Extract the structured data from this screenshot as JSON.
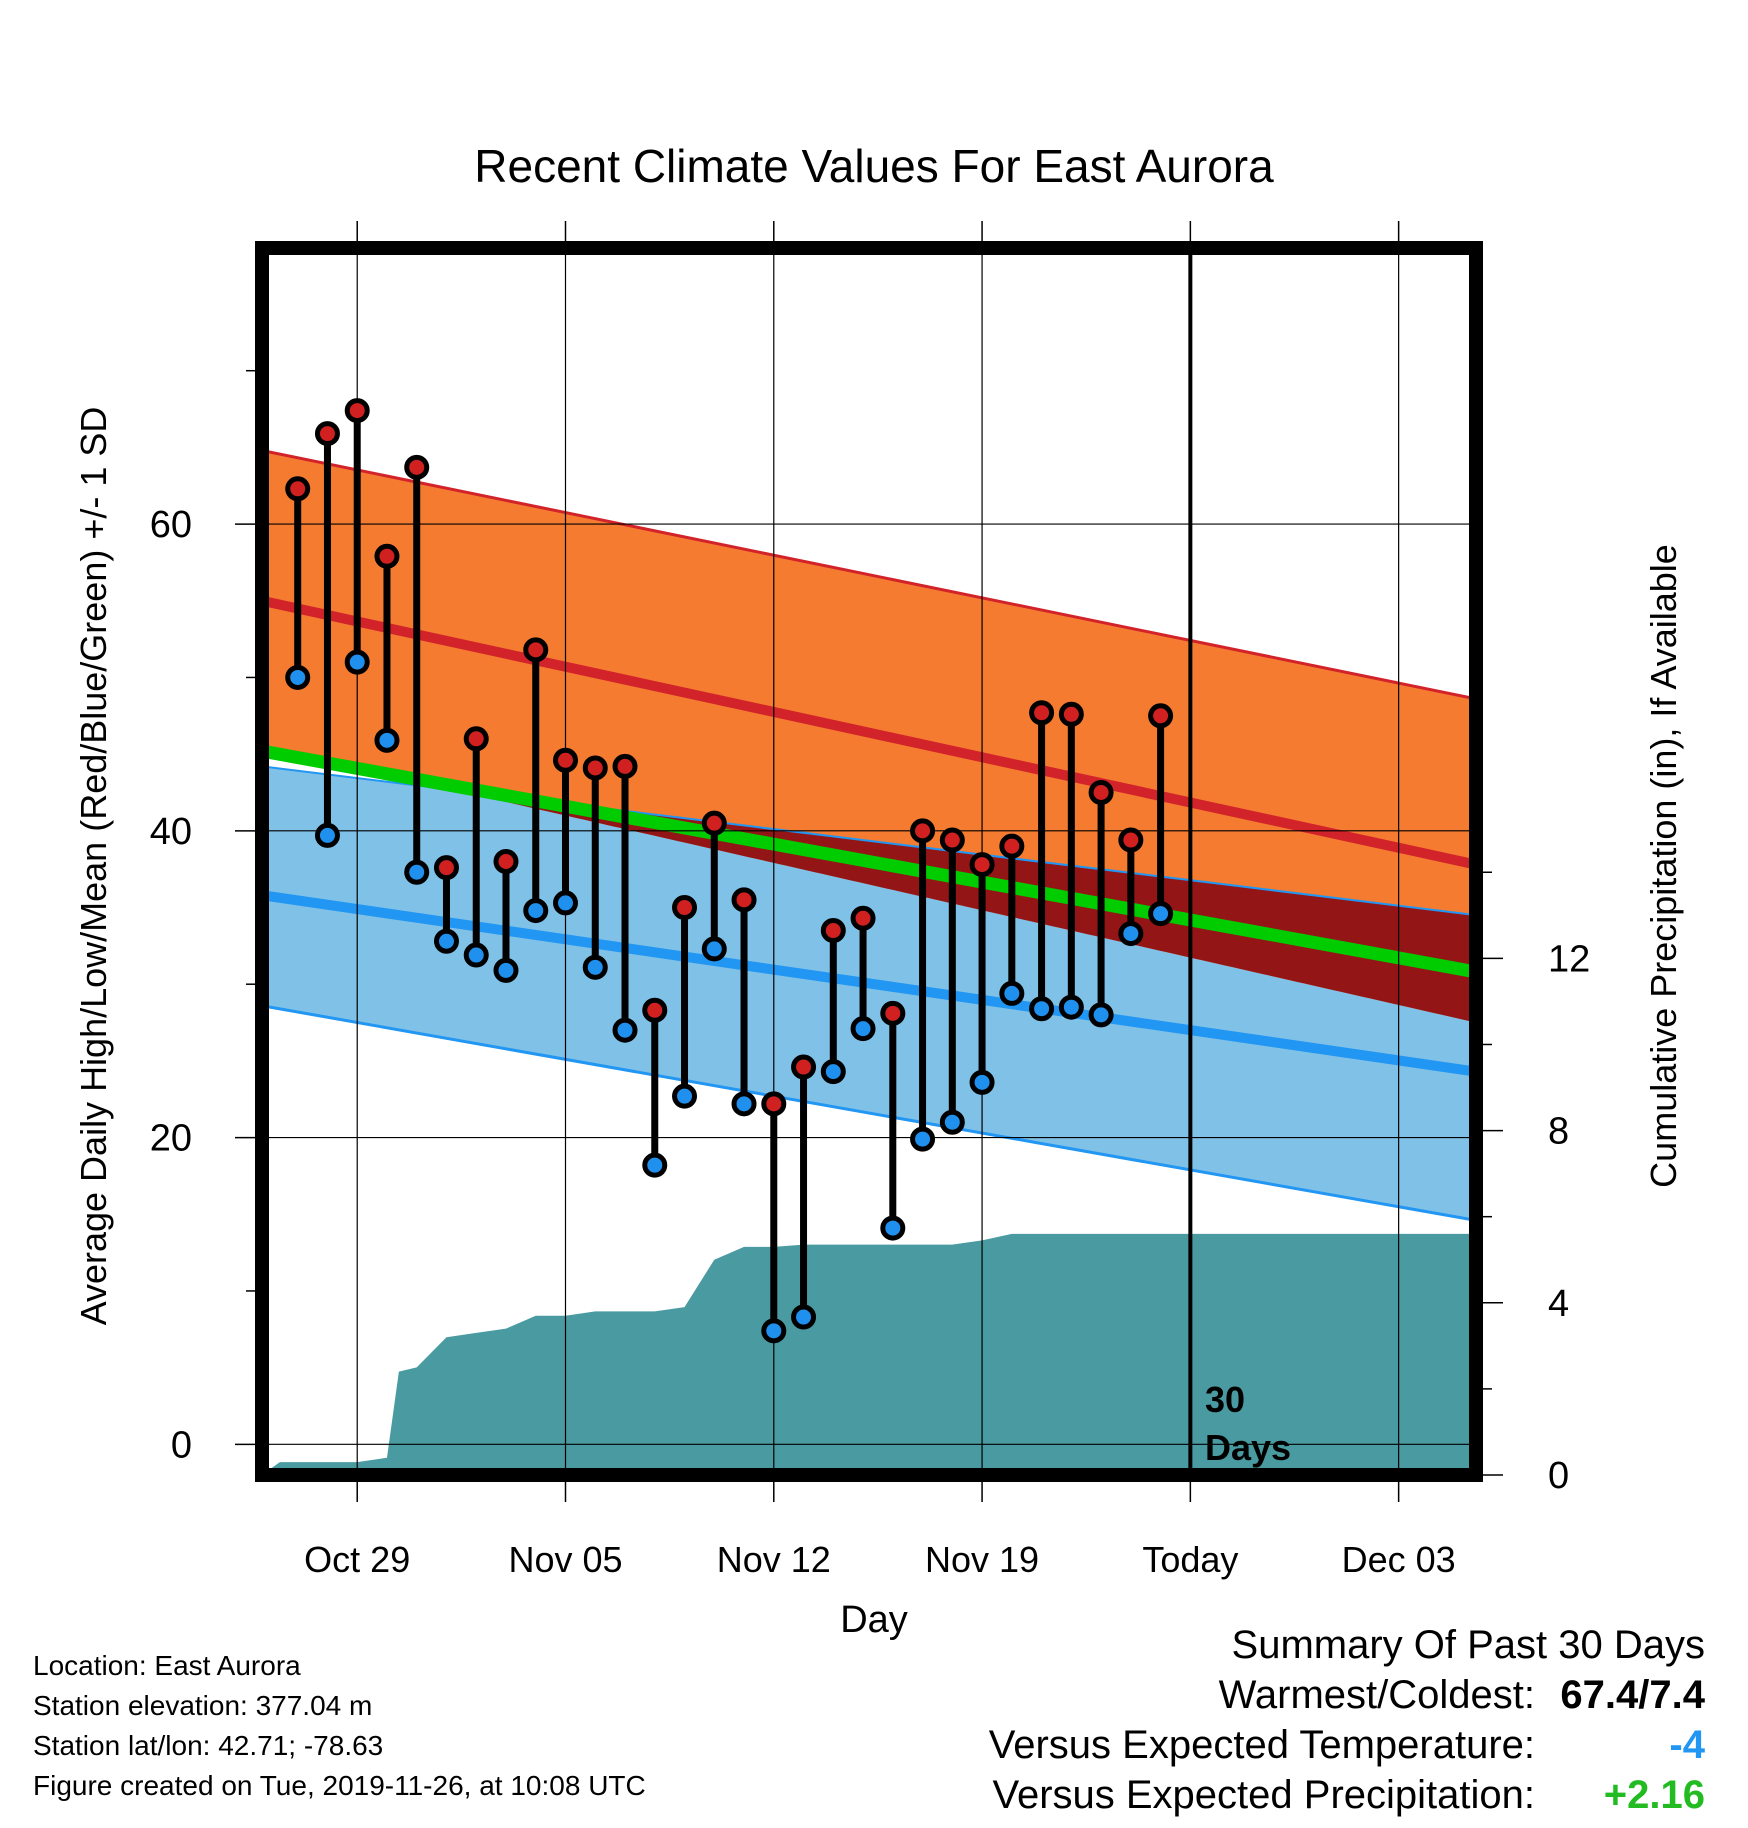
{
  "chart_data": {
    "type": "line",
    "title": "Recent Climate Values For East Aurora",
    "xlabel": "Day",
    "ylabel": "Average Daily High/Low/Mean (Red/Blue/Green) +/- 1 SD",
    "y2label": "Cumulative Precipitation (in), If Available",
    "x_ticks": [
      "Oct 29",
      "Nov 05",
      "Nov 12",
      "Nov 19",
      "Today",
      "Dec 03"
    ],
    "x_tick_days": [
      0,
      7,
      14,
      21,
      28,
      35
    ],
    "xlim": [
      -3.2,
      37.6
    ],
    "ylim": [
      -2,
      78
    ],
    "y_ticks": [
      0,
      20,
      40,
      60
    ],
    "y2lim": [
      0,
      28.5
    ],
    "y2_ticks": [
      0,
      4,
      8,
      12
    ],
    "grid": true,
    "today_marker": {
      "day": 28,
      "label_line1": "30",
      "label_line2": "Days"
    },
    "expected_high": {
      "mean": [
        55.0,
        37.8
      ],
      "upper": [
        64.8,
        48.6
      ],
      "lower": [
        45.5,
        27.5
      ]
    },
    "expected_low": {
      "mean": [
        35.8,
        24.3
      ],
      "upper": [
        44.2,
        34.5
      ],
      "lower": [
        28.6,
        14.6
      ]
    },
    "expected_mean": [
      45.2,
      30.8
    ],
    "colors": {
      "high_band": "#f47b30",
      "high_line": "#d3232a",
      "low_band": "#80c1e7",
      "low_line": "#2196f3",
      "overlap_band": "#941516",
      "mean_line": "#00cc00",
      "precip": "#4a9aa1",
      "high_dot": "#d02020",
      "low_dot": "#2090ee"
    },
    "observed": {
      "days": [
        -2,
        -1,
        0,
        1,
        2,
        3,
        4,
        5,
        6,
        7,
        8,
        9,
        10,
        11,
        12,
        13,
        14,
        15,
        16,
        17,
        18,
        19,
        20,
        21,
        22,
        23,
        24,
        25,
        26,
        27
      ],
      "high": [
        62.3,
        65.9,
        67.4,
        57.9,
        63.7,
        37.6,
        46.0,
        38.0,
        51.8,
        44.6,
        44.1,
        44.2,
        28.3,
        35.0,
        40.5,
        35.5,
        22.2,
        24.6,
        33.5,
        34.3,
        28.1,
        40.0,
        39.4,
        37.8,
        39.0,
        47.7,
        47.6,
        42.5,
        39.4,
        47.5
      ],
      "low": [
        50.0,
        39.7,
        51.0,
        45.9,
        37.3,
        32.8,
        31.9,
        30.9,
        34.8,
        35.3,
        31.1,
        27.0,
        18.2,
        22.7,
        32.3,
        22.2,
        7.4,
        8.3,
        24.3,
        27.1,
        14.1,
        19.9,
        21.0,
        23.6,
        29.4,
        28.4,
        28.5,
        28.0,
        33.3,
        34.6
      ]
    },
    "precip": {
      "days": [
        -3.2,
        -2.6,
        -1,
        0,
        1,
        1.4,
        2,
        3,
        4,
        5,
        6,
        7,
        8,
        9,
        10,
        11,
        12,
        13,
        13.6,
        14,
        15,
        16,
        17,
        18,
        19,
        20,
        21,
        22,
        23,
        24,
        37.6
      ],
      "values": [
        0.0,
        0.3,
        0.3,
        0.3,
        0.4,
        2.4,
        2.5,
        3.2,
        3.3,
        3.4,
        3.7,
        3.7,
        3.8,
        3.8,
        3.8,
        3.9,
        5.0,
        5.3,
        5.3,
        5.3,
        5.35,
        5.35,
        5.35,
        5.35,
        5.35,
        5.35,
        5.45,
        5.6,
        5.6,
        5.6,
        5.6
      ]
    }
  },
  "info": {
    "location": "Location: East Aurora",
    "elevation": "Station elevation: 377.04 m",
    "latlon": "Station lat/lon: 42.71; -78.63",
    "created": "Figure created on Tue, 2019-11-26, at 10:08 UTC"
  },
  "summary": {
    "title": "Summary Of Past 30 Days",
    "warmest_coldest_label": "Warmest/Coldest:",
    "warmest_coldest_value": "67.4/7.4",
    "temp_label": "Versus Expected Temperature:",
    "temp_value": "-4",
    "temp_color": "#2196f3",
    "precip_label": "Versus Expected Precipitation:",
    "precip_value": "+2.16",
    "precip_color": "#22bb22"
  }
}
